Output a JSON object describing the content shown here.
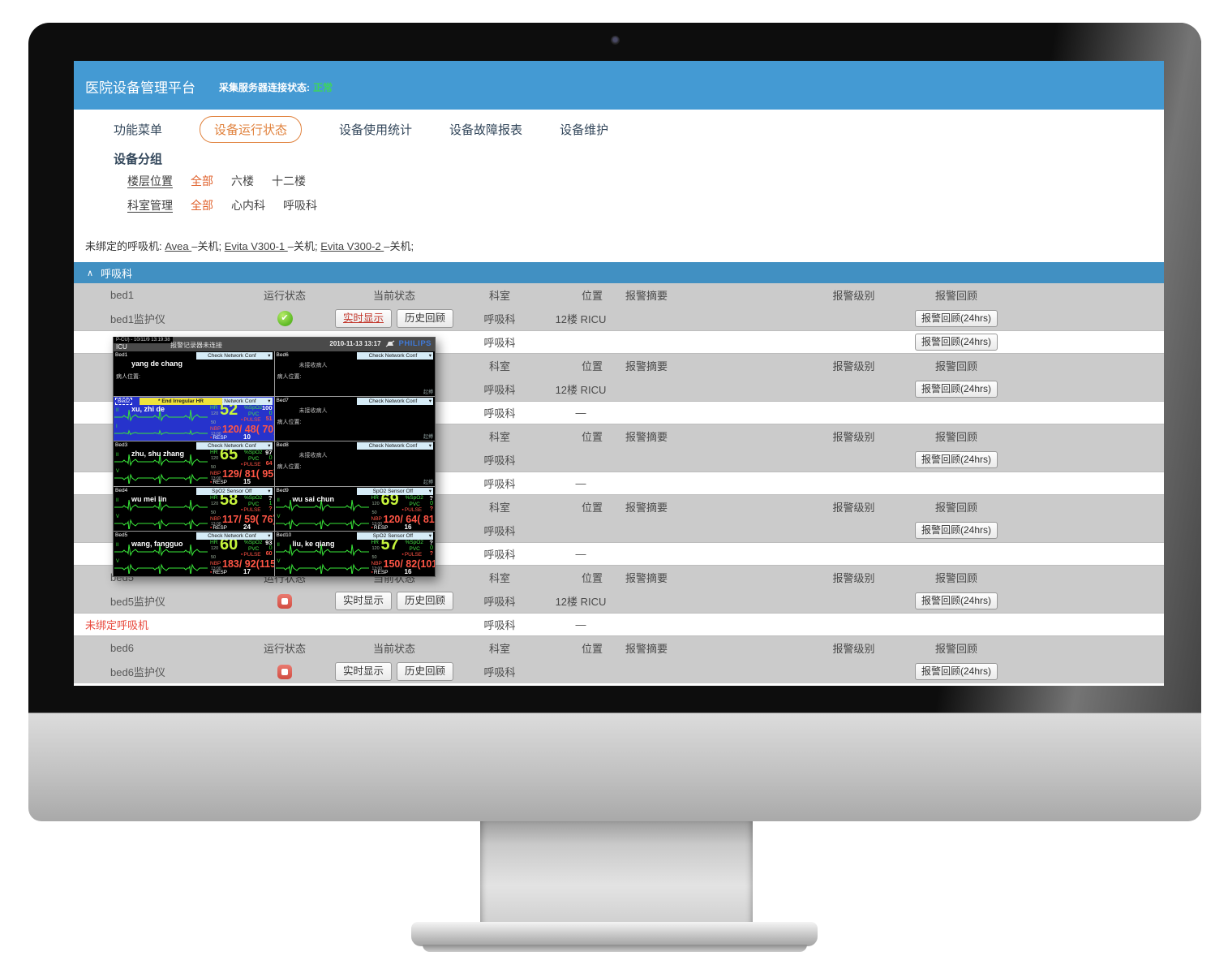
{
  "page": {
    "header": {
      "title": "医院设备管理平台",
      "status_label": "采集服务器连接状态:",
      "status_value": "正常"
    },
    "nav": [
      {
        "label": "功能菜单",
        "active": false
      },
      {
        "label": "设备运行状态",
        "active": true
      },
      {
        "label": "设备使用统计",
        "active": false
      },
      {
        "label": "设备故障报表",
        "active": false
      },
      {
        "label": "设备维护",
        "active": false
      }
    ],
    "group_heading": "设备分组",
    "filters": [
      {
        "label": "楼层位置",
        "options": [
          {
            "label": "全部",
            "selected": true
          },
          {
            "label": "六楼",
            "selected": false
          },
          {
            "label": "十二楼",
            "selected": false
          }
        ]
      },
      {
        "label": "科室管理",
        "options": [
          {
            "label": "全部",
            "selected": true
          },
          {
            "label": "心内科",
            "selected": false
          },
          {
            "label": "呼吸科",
            "selected": false
          }
        ]
      }
    ],
    "unbound": {
      "prefix": "未绑定的呼吸机: ",
      "items": [
        {
          "name": "Avea",
          "suffix": "–关机; "
        },
        {
          "name": "Evita V300-1",
          "suffix": "–关机; "
        },
        {
          "name": "Evita V300-2",
          "suffix": "–关机;"
        }
      ]
    },
    "section": {
      "caret": "∧",
      "title": "呼吸科"
    },
    "table": {
      "header_cols": {
        "run": "运行状态",
        "cur": "当前状态",
        "dept": "科室",
        "loc": "位置",
        "alarm": "报警摘要",
        "level": "报警级别",
        "review": "报警回顾"
      },
      "buttons": {
        "live": "实时显示",
        "history": "历史回顾",
        "review24": "报警回顾(24hrs)",
        "ok_glyph": "✔"
      },
      "rows": [
        {
          "t": "gh",
          "bed": "bed1"
        },
        {
          "t": "dev",
          "name": "bed1监护仪",
          "icon": "ok",
          "btns": true,
          "liveActive": true,
          "dept": "呼吸科",
          "loc": "12楼 RICU",
          "rev": true
        },
        {
          "t": "vent",
          "name": "",
          "red": false,
          "dept": "呼吸科",
          "loc": "",
          "rev": true
        },
        {
          "t": "gh",
          "bed": ""
        },
        {
          "t": "dev",
          "name": "",
          "icon": "",
          "btns": false,
          "liveActive": false,
          "dept": "呼吸科",
          "loc": "12楼 RICU",
          "rev": true
        },
        {
          "t": "vent",
          "name": "",
          "red": false,
          "dept": "呼吸科",
          "loc": "—",
          "rev": false
        },
        {
          "t": "gh",
          "bed": ""
        },
        {
          "t": "dev",
          "name": "",
          "icon": "",
          "btns": false,
          "liveActive": false,
          "dept": "呼吸科",
          "loc": "",
          "rev": true
        },
        {
          "t": "vent",
          "name": "",
          "red": false,
          "dept": "呼吸科",
          "loc": "—",
          "rev": false
        },
        {
          "t": "gh",
          "bed": ""
        },
        {
          "t": "dev",
          "name": "",
          "icon": "",
          "btns": false,
          "liveActive": false,
          "dept": "呼吸科",
          "loc": "",
          "rev": true
        },
        {
          "t": "vent",
          "name": "",
          "red": false,
          "dept": "呼吸科",
          "loc": "—",
          "rev": false
        },
        {
          "t": "gh",
          "bed": "bed5"
        },
        {
          "t": "dev",
          "name": "bed5监护仪",
          "icon": "stop",
          "btns": true,
          "liveActive": false,
          "dept": "呼吸科",
          "loc": "12楼 RICU",
          "rev": true
        },
        {
          "t": "vent",
          "name": "未绑定呼吸机",
          "red": true,
          "dept": "呼吸科",
          "loc": "—",
          "rev": false
        },
        {
          "t": "gh",
          "bed": "bed6"
        },
        {
          "t": "dev",
          "name": "bed6监护仪",
          "icon": "stop",
          "btns": true,
          "liveActive": false,
          "dept": "呼吸科",
          "loc": "",
          "rev": true
        }
      ]
    }
  },
  "popup": {
    "overlay_text": "P-CU) - 10/11/9 13:19:38",
    "titlebar": {
      "label": "ICU",
      "center": "报警记录器未连接",
      "datetime": "2010-11-13 13:17",
      "brand": "PHILIPS"
    },
    "labels": {
      "no_patient": "未接收病人",
      "location": "病人位置:",
      "pacing": "起搏",
      "hr": "HR",
      "spo2": "%SpO2",
      "pvc": "PVC",
      "pulse": "PULSE",
      "nbp": "NBP",
      "resp": "RESP",
      "square": "▪",
      "dd": "▾"
    },
    "beds": [
      {
        "id": "Bed1",
        "kind": "idle",
        "name": "yang de chang",
        "dropdown": "Check Network Conf"
      },
      {
        "id": "Bed6",
        "kind": "empty",
        "dropdown": "Check Network Conf"
      },
      {
        "id": "Bed2",
        "kind": "vitals",
        "highlight": true,
        "alarm": "* End Irregular HR",
        "dropdown": "Check Network Conf",
        "name": "xu, zhi de",
        "leads": [
          "II",
          "I"
        ],
        "hr": "52",
        "hr_hi": "120",
        "hr_lo": "50",
        "spo2": "100",
        "pvc": "0",
        "pulse": "51",
        "nbp": "120/ 48( 70)",
        "nbp_time": "13:00",
        "resp": "10"
      },
      {
        "id": "Bed7",
        "kind": "empty",
        "dropdown": "Check Network Conf"
      },
      {
        "id": "Bed3",
        "kind": "vitals",
        "highlight": false,
        "alarm": "",
        "dropdown": "Check Network Conf",
        "name": "zhu, shu zhang",
        "leads": [
          "II",
          "V"
        ],
        "hr": "65",
        "hr_hi": "120",
        "hr_lo": "50",
        "spo2": "97",
        "pvc": "0",
        "pulse": "64",
        "nbp": "129/ 81( 95)",
        "nbp_time": "13:00",
        "resp": "15"
      },
      {
        "id": "Bed8",
        "kind": "empty",
        "dropdown": "Check Network Conf"
      },
      {
        "id": "Bed4",
        "kind": "vitals",
        "highlight": false,
        "alarm": "",
        "dropdown": "SpO2  Sensor Off",
        "name": "wu mei lin",
        "leads": [
          "II",
          "V"
        ],
        "hr": "58",
        "hr_hi": "120",
        "hr_lo": "50",
        "spo2": "?",
        "pvc": "1",
        "pulse": "?",
        "nbp": "117/ 59( 76)",
        "nbp_time": "13:00",
        "resp": "24"
      },
      {
        "id": "Bed9",
        "kind": "vitals",
        "highlight": false,
        "alarm": "",
        "dropdown": "SpO2  Sensor Off",
        "name": "wu sai chun",
        "leads": [
          "II",
          "V"
        ],
        "hr": "69",
        "hr_hi": "120",
        "hr_lo": "50",
        "spo2": "?",
        "pvc": "0",
        "pulse": "?",
        "nbp": "120/ 64( 81)",
        "nbp_time": "13:00",
        "resp": "16"
      },
      {
        "id": "Bed5",
        "kind": "vitals",
        "highlight": false,
        "alarm": "",
        "dropdown": "Check Network Conf",
        "name": "wang, fangguo",
        "leads": [
          "II",
          "V"
        ],
        "hr": "60",
        "hr_hi": "120",
        "hr_lo": "50",
        "spo2": "93",
        "pvc": "0",
        "pulse": "60",
        "nbp": "183/ 92(115)",
        "nbp_time": "13:00",
        "resp": "17"
      },
      {
        "id": "Bed10",
        "kind": "vitals",
        "highlight": false,
        "alarm": "",
        "dropdown": "SpO2  Sensor Off",
        "name": "liu, ke qiang",
        "leads": [
          "II",
          "V"
        ],
        "hr": "57",
        "hr_hi": "120",
        "hr_lo": "50",
        "spo2": "?",
        "pvc": "0",
        "pulse": "?",
        "nbp": "150/ 82(101)",
        "nbp_time": "13:00",
        "resp": "16"
      }
    ]
  }
}
